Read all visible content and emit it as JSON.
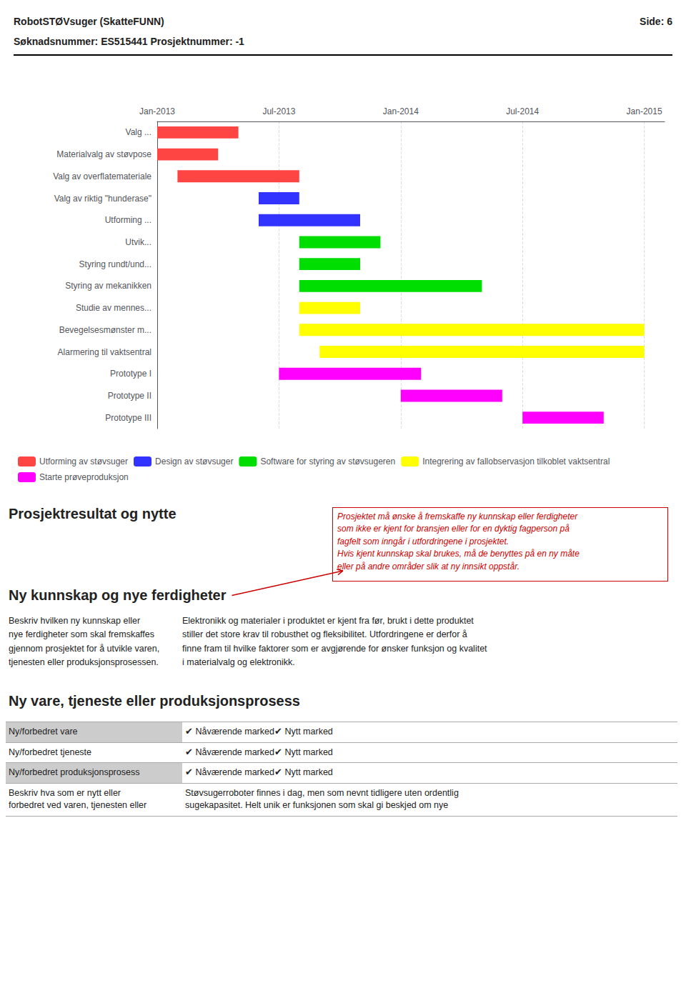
{
  "chart_data": {
    "type": "gantt",
    "orientation": "horizontal",
    "categories": [
      "Valg ...",
      "Materialvalg av støvpose",
      "Valg av overflatemateriale",
      "Valg av riktig \"hunderase\"",
      "Utforming ...",
      "Utvik...",
      "Styring rundt/und...",
      "Styring av mekanikken",
      "Studie av mennes...",
      "Bevegelsesmønster m...",
      "Alarmering til vaktsentral",
      "Prototype I",
      "Prototype II",
      "Prototype III"
    ],
    "series": [
      {
        "name": "Utforming av støvsuger",
        "color": "#ff4444",
        "start": [
          0,
          0,
          1,
          null,
          null,
          null,
          null,
          null,
          null,
          null,
          null,
          null,
          null,
          null
        ],
        "values": [
          4,
          3,
          6,
          null,
          null,
          null,
          null,
          null,
          null,
          null,
          null,
          null,
          null,
          null
        ]
      },
      {
        "name": "Design av støvsuger",
        "color": "#3333ff",
        "start": [
          null,
          null,
          null,
          5,
          5,
          null,
          null,
          null,
          null,
          null,
          null,
          null,
          null,
          null
        ],
        "values": [
          null,
          null,
          null,
          2,
          5,
          null,
          null,
          null,
          null,
          null,
          null,
          null,
          null,
          null
        ]
      },
      {
        "name": "Software for styring av støvsugeren",
        "color": "#00dd00",
        "start": [
          null,
          null,
          null,
          null,
          null,
          7,
          7,
          7,
          null,
          null,
          null,
          null,
          null,
          null
        ],
        "values": [
          null,
          null,
          null,
          null,
          null,
          4,
          3,
          9,
          null,
          null,
          null,
          null,
          null,
          null
        ]
      },
      {
        "name": "Integrering av fallobservasjon tilkoblet vaktsentral",
        "color": "#ffff00",
        "start": [
          null,
          null,
          null,
          null,
          null,
          null,
          null,
          null,
          7,
          7,
          8,
          null,
          null,
          null
        ],
        "values": [
          null,
          null,
          null,
          null,
          null,
          null,
          null,
          null,
          3,
          17,
          16,
          null,
          null,
          null
        ]
      },
      {
        "name": "Starte prøveproduksjon",
        "color": "#ff00ff",
        "start": [
          null,
          null,
          null,
          null,
          null,
          null,
          null,
          null,
          null,
          null,
          null,
          6,
          12,
          18
        ],
        "values": [
          null,
          null,
          null,
          null,
          null,
          null,
          null,
          null,
          null,
          null,
          null,
          7,
          5,
          4
        ]
      }
    ],
    "xlim": [
      0,
      25
    ],
    "xticks": [
      {
        "value": 0,
        "label": "Jan-2013"
      },
      {
        "value": 6,
        "label": "Jul-2013"
      },
      {
        "value": 12,
        "label": "Jan-2014"
      },
      {
        "value": 18,
        "label": "Jul-2014"
      },
      {
        "value": 24,
        "label": "Jan-2015"
      }
    ],
    "grid": true,
    "legend": "bottom"
  },
  "page": {
    "header": "RobotSTØVsuger (SkatteFUNN)",
    "page_number": "Side: 6",
    "subheader": "Søknadsnummer: ES515441 Prosjektnummer: -1",
    "section1_heading": "Prosjektresultat og nytte",
    "callout": {
      "text": "Prosjektet må ønske å fremskaffe ny kunnskap eller ferdigheter\nsom ikke er kjent for bransjen eller for en dyktig fagperson på\nfagfelt som inngår i utfordringene i prosjektet.\nHvis kjent kunnskap skal brukes, må de benyttes på en ny måte\neller på andre områder slik at ny innsikt oppstår.",
      "color": "#cc0000"
    },
    "section2_heading": "Ny kunnskap og nye ferdigheter",
    "left_col": "Beskriv hvilken ny kunnskap eller\nnye ferdigheter som skal fremskaffes\ngjennom prosjektet for å utvikle varen,\ntjenesten eller produksjonsprosessen.",
    "right_col": "Elektronikk og materialer i produktet er kjent fra før, brukt i dette produktet\nstiller det store krav til robusthet og fleksibilitet. Utfordringene er derfor å\nfinne fram til hvilke faktorer som er avgjørende for ønsker funksjon og kvalitet\ni materialvalg og elektronikk.",
    "section3_heading": "Ny vare, tjeneste eller produksjonsprosess",
    "table": [
      {
        "label": "Ny/forbedret vare",
        "value": "✔ Nåværende marked✔ Nytt marked"
      },
      {
        "label": "Ny/forbedret tjeneste",
        "value": "✔ Nåværende marked✔ Nytt marked"
      },
      {
        "label": "Ny/forbedret produksjonsprosess",
        "value": "✔ Nåværende marked✔ Nytt marked"
      },
      {
        "label": "Beskriv hva som er nytt eller\nforbedret ved varen, tjenesten eller",
        "value": "Støvsugerroboter finnes i dag, men som nevnt tidligere uten ordentlig\nsugekapasitet. Helt unik er funksjonen som skal gi beskjed om nye"
      }
    ]
  }
}
